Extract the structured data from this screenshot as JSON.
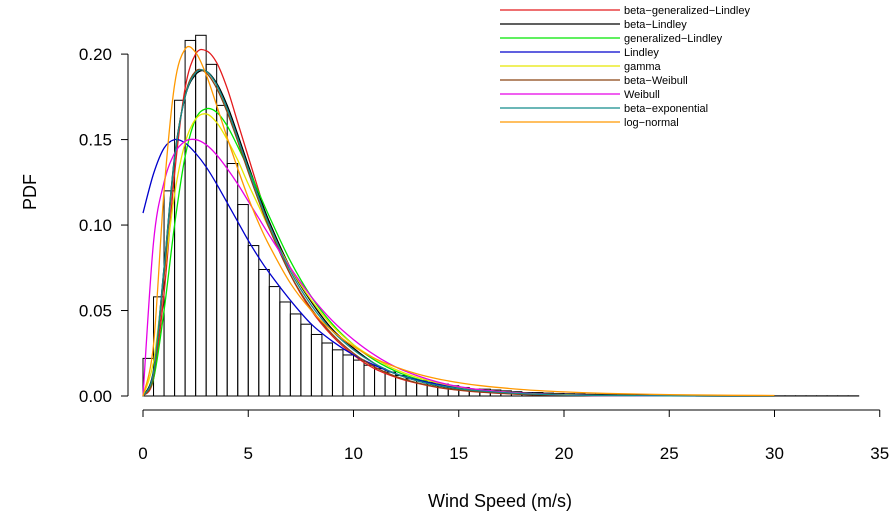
{
  "chart_data": {
    "type": "bar",
    "xlabel": "Wind Speed (m/s)",
    "ylabel": "PDF",
    "xlim": [
      0,
      35
    ],
    "ylim": [
      0,
      0.21
    ],
    "x_ticks": [
      {
        "value": 0,
        "label": "0"
      },
      {
        "value": 5,
        "label": "5"
      },
      {
        "value": 10,
        "label": "10"
      },
      {
        "value": 15,
        "label": "15"
      },
      {
        "value": 20,
        "label": "20"
      },
      {
        "value": 25,
        "label": "25"
      },
      {
        "value": 30,
        "label": "30"
      },
      {
        "value": 35,
        "label": "35"
      }
    ],
    "y_ticks": [
      {
        "value": 0.0,
        "label": "0.00"
      },
      {
        "value": 0.05,
        "label": "0.05"
      },
      {
        "value": 0.1,
        "label": "0.10"
      },
      {
        "value": 0.15,
        "label": "0.15"
      },
      {
        "value": 0.2,
        "label": "0.20"
      }
    ],
    "histogram": {
      "bin_width": 0.5,
      "bin_start": 0,
      "density": [
        0.022,
        0.058,
        0.12,
        0.173,
        0.208,
        0.211,
        0.194,
        0.17,
        0.136,
        0.112,
        0.088,
        0.074,
        0.064,
        0.055,
        0.048,
        0.042,
        0.036,
        0.031,
        0.027,
        0.024,
        0.021,
        0.018,
        0.016,
        0.014,
        0.012,
        0.01,
        0.009,
        0.008,
        0.007,
        0.006,
        0.005,
        0.004,
        0.004,
        0.0035,
        0.003,
        0.0025,
        0.002,
        0.002,
        0.0017,
        0.0015,
        0.0013,
        0.0012,
        0.001,
        0.001,
        0.0009,
        0.0008,
        0.0007,
        0.0006,
        0.0005,
        0.0005,
        0.0004,
        0.0004,
        0.0003,
        0.0003,
        0.0003,
        0.0002,
        0.0002,
        0.0002,
        0.0002,
        0.0001,
        0.0001,
        0.0001,
        0.0001,
        0.0001,
        0.0001,
        0.0001,
        0.0001,
        0.0001
      ]
    },
    "x_grid": [
      0,
      0.5,
      1,
      1.5,
      2,
      2.5,
      3,
      3.5,
      4,
      4.5,
      5,
      5.5,
      6,
      7,
      8,
      9,
      10,
      11,
      12,
      13,
      14,
      15,
      16,
      18,
      20,
      22,
      25,
      28,
      30
    ],
    "series": [
      {
        "name": "beta−generalized−Lindley",
        "color": "#e41a1c",
        "y": [
          0,
          0.01,
          0.06,
          0.13,
          0.18,
          0.2,
          0.202,
          0.195,
          0.18,
          0.16,
          0.14,
          0.12,
          0.1,
          0.071,
          0.05,
          0.035,
          0.024,
          0.016,
          0.011,
          0.0075,
          0.005,
          0.0034,
          0.0023,
          0.001,
          0.0005,
          0.0002,
          0.0001,
          0,
          0
        ]
      },
      {
        "name": "beta−Lindley",
        "color": "#000000",
        "y": [
          0,
          0.015,
          0.075,
          0.14,
          0.175,
          0.188,
          0.19,
          0.183,
          0.17,
          0.153,
          0.135,
          0.118,
          0.102,
          0.075,
          0.055,
          0.039,
          0.028,
          0.019,
          0.013,
          0.009,
          0.006,
          0.0042,
          0.0029,
          0.0013,
          0.0006,
          0.0003,
          0.0001,
          0,
          0
        ]
      },
      {
        "name": "generalized−Lindley",
        "color": "#00e600",
        "y": [
          0,
          0.01,
          0.05,
          0.1,
          0.14,
          0.162,
          0.168,
          0.166,
          0.158,
          0.146,
          0.133,
          0.119,
          0.105,
          0.079,
          0.058,
          0.042,
          0.03,
          0.021,
          0.0145,
          0.01,
          0.0068,
          0.0046,
          0.0031,
          0.0014,
          0.0006,
          0.0003,
          0.0001,
          0,
          0
        ]
      },
      {
        "name": "Lindley",
        "color": "#0000cc",
        "y": [
          0.107,
          0.13,
          0.145,
          0.15,
          0.148,
          0.142,
          0.134,
          0.124,
          0.113,
          0.102,
          0.091,
          0.081,
          0.072,
          0.056,
          0.042,
          0.032,
          0.024,
          0.018,
          0.013,
          0.0095,
          0.0069,
          0.005,
          0.0036,
          0.0018,
          0.0009,
          0.0004,
          0.0001,
          0,
          0
        ]
      },
      {
        "name": "gamma",
        "color": "#e6e600",
        "y": [
          0,
          0.02,
          0.07,
          0.118,
          0.148,
          0.162,
          0.165,
          0.16,
          0.15,
          0.138,
          0.124,
          0.111,
          0.098,
          0.075,
          0.056,
          0.041,
          0.03,
          0.022,
          0.0155,
          0.011,
          0.0077,
          0.0053,
          0.0037,
          0.0017,
          0.0008,
          0.0003,
          0.0001,
          0,
          0
        ]
      },
      {
        "name": "beta−Weibull",
        "color": "#8b4513",
        "y": [
          0,
          0.012,
          0.07,
          0.138,
          0.176,
          0.19,
          0.189,
          0.18,
          0.166,
          0.149,
          0.131,
          0.114,
          0.098,
          0.071,
          0.051,
          0.036,
          0.025,
          0.017,
          0.0115,
          0.0078,
          0.0052,
          0.0035,
          0.0024,
          0.001,
          0.0004,
          0.0002,
          0.0001,
          0,
          0
        ]
      },
      {
        "name": "Weibull",
        "color": "#e600e6",
        "y": [
          0,
          0.09,
          0.125,
          0.142,
          0.149,
          0.15,
          0.147,
          0.141,
          0.133,
          0.124,
          0.114,
          0.104,
          0.094,
          0.075,
          0.058,
          0.044,
          0.033,
          0.024,
          0.017,
          0.012,
          0.0082,
          0.0055,
          0.0037,
          0.0016,
          0.0006,
          0.0002,
          0.0001,
          0,
          0
        ]
      },
      {
        "name": "beta−exponential",
        "color": "#138c8c",
        "y": [
          0,
          0.014,
          0.075,
          0.139,
          0.175,
          0.189,
          0.19,
          0.182,
          0.168,
          0.151,
          0.133,
          0.116,
          0.1,
          0.073,
          0.053,
          0.038,
          0.027,
          0.019,
          0.013,
          0.009,
          0.0062,
          0.0043,
          0.003,
          0.0014,
          0.0006,
          0.0003,
          0.0001,
          0,
          0
        ]
      },
      {
        "name": "log−normal",
        "color": "#ff9900",
        "y": [
          0,
          0.03,
          0.12,
          0.182,
          0.203,
          0.201,
          0.188,
          0.17,
          0.151,
          0.133,
          0.116,
          0.101,
          0.088,
          0.066,
          0.05,
          0.038,
          0.029,
          0.022,
          0.017,
          0.013,
          0.01,
          0.0078,
          0.0061,
          0.0038,
          0.0024,
          0.0015,
          0.0008,
          0.0004,
          0.0003
        ]
      }
    ],
    "legend_position": "top-right"
  }
}
